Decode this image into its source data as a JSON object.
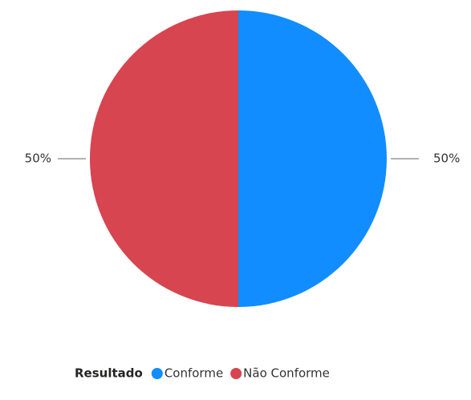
{
  "chart_data": {
    "type": "pie",
    "categories": [
      "Conforme",
      "Não Conforme"
    ],
    "values": [
      50,
      50
    ],
    "value_labels": [
      "50%",
      "50%"
    ],
    "colors": [
      "#118dff",
      "#d64550"
    ],
    "legend_title": "Resultado",
    "legend": "bottom"
  }
}
